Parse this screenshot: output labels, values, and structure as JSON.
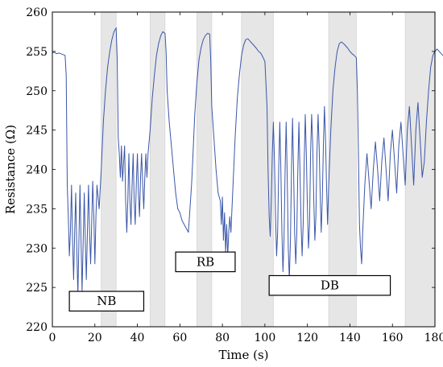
{
  "chart_data": {
    "type": "line",
    "title": "",
    "xlabel": "Time (s)",
    "ylabel": "Resistance (Ω)",
    "xlim": [
      0,
      180
    ],
    "ylim": [
      220,
      260
    ],
    "xticks": [
      0,
      20,
      40,
      60,
      80,
      100,
      120,
      140,
      160,
      180
    ],
    "yticks": [
      220,
      225,
      230,
      235,
      240,
      245,
      250,
      255,
      260
    ],
    "grid": false,
    "line_color": "#3a56a8",
    "shade_color": "#e6e6e6",
    "shaded_intervals": [
      [
        23,
        30
      ],
      [
        46,
        53
      ],
      [
        68,
        75
      ],
      [
        89,
        104
      ],
      [
        130,
        143
      ],
      [
        166,
        184
      ]
    ],
    "annotations": [
      {
        "text": "NB",
        "x_range": [
          8,
          43
        ],
        "y_range": [
          222,
          224.5
        ]
      },
      {
        "text": "RB",
        "x_range": [
          58,
          86
        ],
        "y_range": [
          227,
          229.5
        ]
      },
      {
        "text": "DB",
        "x_range": [
          102,
          159
        ],
        "y_range": [
          224,
          226.5
        ]
      }
    ],
    "series": [
      {
        "points": [
          [
            0,
            254.8
          ],
          [
            1,
            254.9
          ],
          [
            2,
            254.7
          ],
          [
            3,
            254.8
          ],
          [
            4,
            254.7
          ],
          [
            5,
            254.6
          ],
          [
            6,
            254.5
          ],
          [
            6.5,
            252
          ],
          [
            7,
            238
          ],
          [
            7.5,
            234
          ],
          [
            8,
            229
          ],
          [
            8.5,
            232
          ],
          [
            9,
            238
          ],
          [
            9.5,
            231
          ],
          [
            10,
            226
          ],
          [
            10.5,
            232
          ],
          [
            11,
            237
          ],
          [
            11.5,
            230
          ],
          [
            12,
            224
          ],
          [
            12.5,
            231
          ],
          [
            13,
            238
          ],
          [
            13.5,
            231
          ],
          [
            14,
            224.5
          ],
          [
            14.5,
            231
          ],
          [
            15,
            237
          ],
          [
            15.5,
            231
          ],
          [
            16,
            226
          ],
          [
            16.5,
            232
          ],
          [
            17,
            238
          ],
          [
            17.5,
            232
          ],
          [
            18,
            228
          ],
          [
            18.5,
            233
          ],
          [
            19,
            238.5
          ],
          [
            19.5,
            234
          ],
          [
            20,
            228
          ],
          [
            20.5,
            234
          ],
          [
            21,
            238
          ],
          [
            22,
            235
          ],
          [
            23,
            240
          ],
          [
            24,
            246
          ],
          [
            25,
            250
          ],
          [
            26,
            253
          ],
          [
            27,
            255
          ],
          [
            28,
            256.5
          ],
          [
            29,
            257.5
          ],
          [
            30,
            258
          ],
          [
            30.5,
            254
          ],
          [
            31,
            244
          ],
          [
            31.5,
            242
          ],
          [
            32,
            239
          ],
          [
            32.5,
            243
          ],
          [
            33,
            238.5
          ],
          [
            34,
            243
          ],
          [
            34.5,
            236
          ],
          [
            35,
            232
          ],
          [
            35.5,
            236
          ],
          [
            36,
            242
          ],
          [
            36.5,
            236
          ],
          [
            37,
            233
          ],
          [
            37.5,
            238
          ],
          [
            38,
            242
          ],
          [
            38.5,
            236
          ],
          [
            39,
            233
          ],
          [
            39.5,
            238
          ],
          [
            40,
            242
          ],
          [
            40.5,
            237
          ],
          [
            41,
            234
          ],
          [
            41.5,
            239
          ],
          [
            42,
            242
          ],
          [
            42.5,
            238
          ],
          [
            43,
            235
          ],
          [
            43.5,
            239
          ],
          [
            44,
            242
          ],
          [
            44.5,
            239
          ],
          [
            45,
            242
          ],
          [
            46,
            245
          ],
          [
            47,
            249
          ],
          [
            48,
            252
          ],
          [
            49,
            254.5
          ],
          [
            50,
            256
          ],
          [
            51,
            257
          ],
          [
            52,
            257.5
          ],
          [
            53,
            257.3
          ],
          [
            53.5,
            255
          ],
          [
            54,
            250
          ],
          [
            55,
            246
          ],
          [
            56,
            243
          ],
          [
            57,
            240
          ],
          [
            58,
            237
          ],
          [
            59,
            235
          ],
          [
            60,
            234.5
          ],
          [
            61,
            233.5
          ],
          [
            62,
            233
          ],
          [
            63,
            232.5
          ],
          [
            64,
            232
          ],
          [
            64.5,
            234
          ],
          [
            65,
            236
          ],
          [
            65.5,
            238
          ],
          [
            66,
            241
          ],
          [
            67,
            247
          ],
          [
            68,
            251
          ],
          [
            69,
            254
          ],
          [
            70,
            255.5
          ],
          [
            71,
            256.5
          ],
          [
            72,
            257
          ],
          [
            73,
            257.3
          ],
          [
            74,
            257.2
          ],
          [
            74.5,
            254
          ],
          [
            75,
            248
          ],
          [
            76,
            244
          ],
          [
            77,
            240
          ],
          [
            78,
            237
          ],
          [
            79,
            236
          ],
          [
            79.5,
            233
          ],
          [
            80,
            236.5
          ],
          [
            80.5,
            231
          ],
          [
            81,
            234.5
          ],
          [
            81.5,
            229.5
          ],
          [
            82,
            233
          ],
          [
            82.5,
            229
          ],
          [
            83,
            232
          ],
          [
            83.5,
            234
          ],
          [
            84,
            232
          ],
          [
            85,
            238
          ],
          [
            86,
            244
          ],
          [
            87,
            249
          ],
          [
            88,
            252
          ],
          [
            89,
            254.5
          ],
          [
            90,
            255.8
          ],
          [
            91,
            256.5
          ],
          [
            92,
            256.6
          ],
          [
            93,
            256.3
          ],
          [
            94,
            256
          ],
          [
            95,
            255.7
          ],
          [
            96,
            255.4
          ],
          [
            97,
            255
          ],
          [
            98,
            254.8
          ],
          [
            99,
            254.3
          ],
          [
            100,
            253.7
          ],
          [
            101,
            248
          ],
          [
            101.5,
            240
          ],
          [
            102,
            234
          ],
          [
            102.5,
            231.5
          ],
          [
            103,
            236
          ],
          [
            103.5,
            242
          ],
          [
            104,
            246
          ],
          [
            104.5,
            241
          ],
          [
            105,
            234
          ],
          [
            105.5,
            229
          ],
          [
            106,
            232
          ],
          [
            106.5,
            240
          ],
          [
            107,
            246
          ],
          [
            107.5,
            240
          ],
          [
            108,
            232
          ],
          [
            108.5,
            227
          ],
          [
            109,
            231
          ],
          [
            109.5,
            240
          ],
          [
            110,
            246
          ],
          [
            110.5,
            239
          ],
          [
            111,
            230
          ],
          [
            111.5,
            226
          ],
          [
            112,
            231
          ],
          [
            112.5,
            240
          ],
          [
            113,
            246.5
          ],
          [
            113.5,
            240
          ],
          [
            114,
            232
          ],
          [
            114.5,
            228
          ],
          [
            115,
            232
          ],
          [
            115.5,
            240
          ],
          [
            116,
            246
          ],
          [
            116.5,
            240
          ],
          [
            117,
            233
          ],
          [
            117.5,
            229
          ],
          [
            118,
            233
          ],
          [
            118.5,
            241
          ],
          [
            119,
            247
          ],
          [
            119.5,
            242
          ],
          [
            120,
            235
          ],
          [
            120.5,
            230
          ],
          [
            121,
            233
          ],
          [
            121.5,
            242
          ],
          [
            122,
            247
          ],
          [
            122.5,
            243
          ],
          [
            123,
            236
          ],
          [
            123.5,
            231
          ],
          [
            124,
            234
          ],
          [
            124.5,
            242
          ],
          [
            125,
            247
          ],
          [
            125.5,
            243
          ],
          [
            126,
            237
          ],
          [
            126.5,
            232
          ],
          [
            127,
            236
          ],
          [
            127.5,
            243
          ],
          [
            128,
            248
          ],
          [
            128.5,
            244
          ],
          [
            129,
            238
          ],
          [
            129.5,
            233
          ],
          [
            130,
            238
          ],
          [
            131,
            245
          ],
          [
            132,
            250
          ],
          [
            133,
            253
          ],
          [
            134,
            255
          ],
          [
            135,
            256
          ],
          [
            136,
            256.2
          ],
          [
            137,
            256
          ],
          [
            138,
            255.7
          ],
          [
            139,
            255.4
          ],
          [
            140,
            255
          ],
          [
            141,
            254.7
          ],
          [
            142,
            254.5
          ],
          [
            143,
            254.2
          ],
          [
            143.5,
            250
          ],
          [
            144,
            242
          ],
          [
            144.5,
            233
          ],
          [
            145,
            230
          ],
          [
            145.5,
            228
          ],
          [
            146,
            232
          ],
          [
            147,
            238
          ],
          [
            148,
            242
          ],
          [
            149,
            238.5
          ],
          [
            150,
            235
          ],
          [
            151,
            240
          ],
          [
            152,
            243.5
          ],
          [
            153,
            240
          ],
          [
            154,
            236
          ],
          [
            155,
            241
          ],
          [
            156,
            244
          ],
          [
            157,
            240
          ],
          [
            158,
            236
          ],
          [
            159,
            242
          ],
          [
            160,
            245
          ],
          [
            161,
            241
          ],
          [
            162,
            237
          ],
          [
            163,
            243
          ],
          [
            164,
            246
          ],
          [
            165,
            242
          ],
          [
            166,
            238
          ],
          [
            167,
            245
          ],
          [
            168,
            248
          ],
          [
            169,
            243
          ],
          [
            170,
            238
          ],
          [
            171,
            245
          ],
          [
            172,
            248.5
          ],
          [
            173,
            244
          ],
          [
            174,
            239
          ],
          [
            175,
            241
          ],
          [
            176,
            246
          ],
          [
            177,
            250
          ],
          [
            178,
            253
          ],
          [
            179,
            254.5
          ],
          [
            180,
            255
          ],
          [
            181,
            255.3
          ],
          [
            182,
            255
          ],
          [
            183,
            254.7
          ],
          [
            184,
            254.4
          ],
          [
            185,
            254
          ],
          [
            186,
            253.7
          ],
          [
            187,
            253.4
          ],
          [
            188,
            253.1
          ],
          [
            189,
            253
          ],
          [
            190,
            253
          ]
        ]
      }
    ]
  }
}
